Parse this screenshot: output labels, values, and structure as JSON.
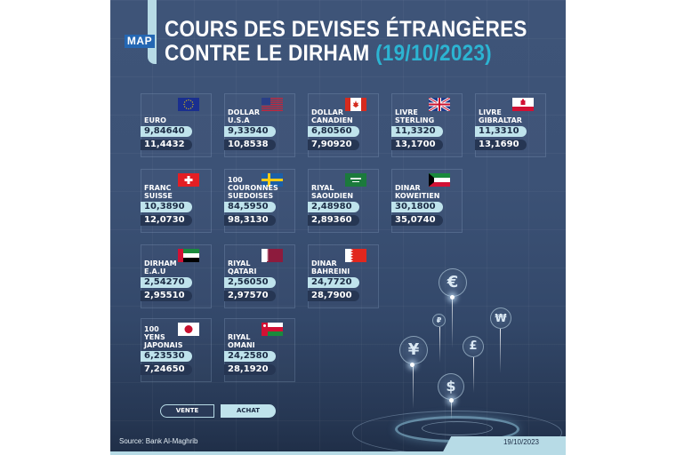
{
  "header": {
    "logo": "MAP",
    "title_line1": "COURS DES DEVISES ÉTRANGÈRES",
    "title_line2": "CONTRE LE DIRHAM",
    "title_date": "(19/10/2023)"
  },
  "currencies": [
    {
      "name": "EURO",
      "flag": "eu-flag",
      "achat": "9,84640",
      "vente": "11,4432"
    },
    {
      "name": "DOLLAR\nU.S.A",
      "flag": "us-flag",
      "achat": "9,33940",
      "vente": "10,8538"
    },
    {
      "name": "DOLLAR\nCANADIEN",
      "flag": "canada-flag",
      "achat": "6,80560",
      "vente": "7,90920"
    },
    {
      "name": "LIVRE\nSTERLING",
      "flag": "uk-flag",
      "achat": "11,3320",
      "vente": "13,1700"
    },
    {
      "name": "LIVRE\nGIBRALTAR",
      "flag": "gibraltar-flag",
      "achat": "11,3310",
      "vente": "13,1690"
    },
    {
      "name": "FRANC\nSUISSE",
      "flag": "switzerland-flag",
      "achat": "10,3890",
      "vente": "12,0730"
    },
    {
      "name": "100\nCOURONNES\nSUEDOISES",
      "flag": "sweden-flag",
      "achat": "84,5950",
      "vente": "98,3130"
    },
    {
      "name": "RIYAL\nSAOUDIEN",
      "flag": "saudi-flag",
      "achat": "2,48980",
      "vente": "2,89360"
    },
    {
      "name": "DINAR\nKOWEITIEN",
      "flag": "kuwait-flag",
      "achat": "30,1800",
      "vente": "35,0740"
    },
    {
      "name": "DIRHAM\nE.A.U",
      "flag": "uae-flag",
      "achat": "2,54270",
      "vente": "2,95510"
    },
    {
      "name": "RIYAL\nQATARI",
      "flag": "qatar-flag",
      "achat": "2,56050",
      "vente": "2,97570"
    },
    {
      "name": "DINAR\nBAHREINI",
      "flag": "bahrain-flag",
      "achat": "24,7720",
      "vente": "28,7900"
    },
    {
      "name": "100\nYENS\nJAPONAIS",
      "flag": "japan-flag",
      "achat": "6,23530",
      "vente": "7,24650"
    },
    {
      "name": "RIYAL\nOMANI",
      "flag": "oman-flag",
      "achat": "24,2580",
      "vente": "28,1920"
    }
  ],
  "legend": {
    "vente": "VENTE",
    "achat": "ACHAT"
  },
  "footer": {
    "source": "Source: Bank Al-Maghrib",
    "date": "19/10/2023"
  },
  "decoration": {
    "coins": [
      "€",
      "₽",
      "₩",
      "¥",
      "£",
      "$"
    ]
  },
  "colors": {
    "background": "#3e5478",
    "accent": "#2cb4d2",
    "pill_light": "#bfe3ec",
    "pill_dark": "#263653",
    "logo": "#2467b3"
  }
}
